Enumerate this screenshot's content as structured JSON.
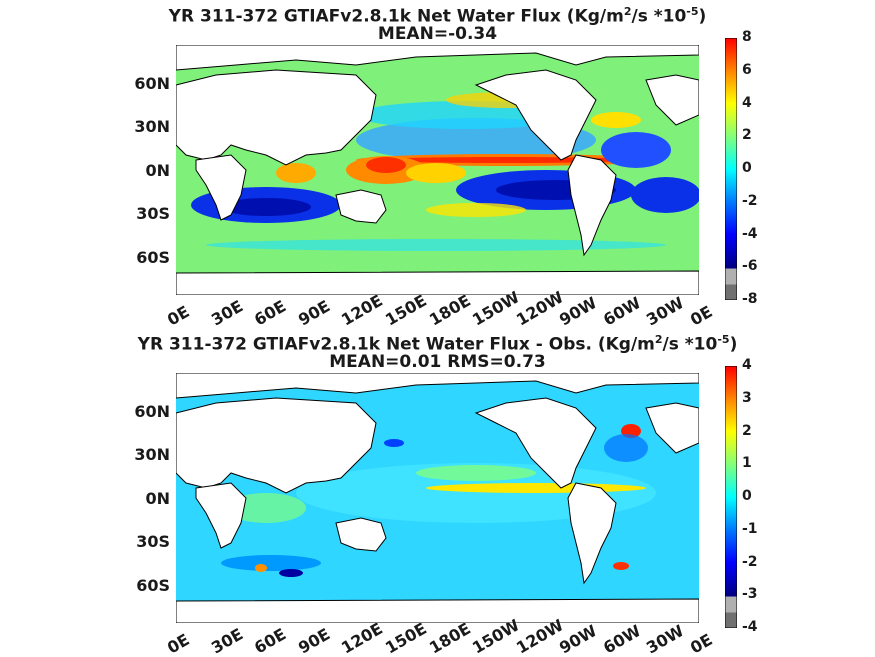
{
  "panels": [
    {
      "title_prefix": "YR 311-372 GTIAFv2.8.1k  Net Water Flux (Kg/m",
      "title_sup1": "2",
      "title_mid": "/s *10",
      "title_sup2": "-5",
      "title_suffix": ")",
      "subtitle": "MEAN=-0.34",
      "lat_labels": [
        "60N",
        "30N",
        "0N",
        "30S",
        "60S"
      ],
      "lon_labels": [
        "0E",
        "30E",
        "60E",
        "90E",
        "120E",
        "150E",
        "180E",
        "150W",
        "120W",
        "90W",
        "60W",
        "30W",
        "0E"
      ],
      "colorbar_ticks": [
        "8",
        "6",
        "4",
        "2",
        "0",
        "-2",
        "-4",
        "-6",
        "-8"
      ],
      "colorbar_range": [
        -8,
        8
      ]
    },
    {
      "title_prefix": "YR 311-372 GTIAFv2.8.1k  Net Water Flux - Obs. (Kg/m",
      "title_sup1": "2",
      "title_mid": "/s *10",
      "title_sup2": "-5",
      "title_suffix": ")",
      "subtitle": "MEAN=0.01 RMS=0.73",
      "lat_labels": [
        "60N",
        "30N",
        "0N",
        "30S",
        "60S"
      ],
      "lon_labels": [
        "0E",
        "30E",
        "60E",
        "90E",
        "120E",
        "150E",
        "180E",
        "150W",
        "120W",
        "90W",
        "60W",
        "30W",
        "0E"
      ],
      "colorbar_ticks": [
        "4",
        "3",
        "2",
        "1",
        "0",
        "-1",
        "-2",
        "-3",
        "-4"
      ],
      "colorbar_range": [
        -4,
        4
      ]
    }
  ],
  "colors": {
    "ocean_neutral": "#7ff07a",
    "land": "#ffffff",
    "coast": "#000000",
    "colormap": [
      "#7f7f7f",
      "#b0b0b0",
      "#00007f",
      "#0000ff",
      "#007fff",
      "#00ffff",
      "#7fff7f",
      "#ffff00",
      "#ff7f00",
      "#ff0000",
      "#7f0000"
    ]
  }
}
